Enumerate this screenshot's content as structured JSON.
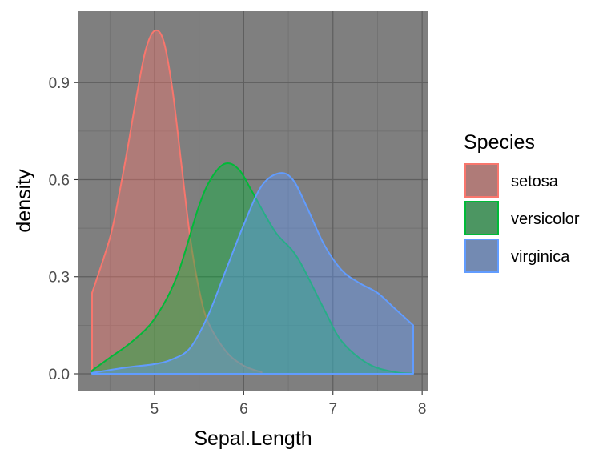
{
  "chart_data": {
    "type": "area",
    "title": "",
    "xlabel": "Sepal.Length",
    "ylabel": "density",
    "xlim": [
      4.3,
      7.9
    ],
    "ylim": [
      0.0,
      1.0663
    ],
    "x_ticks": [
      5,
      6,
      7,
      8
    ],
    "x_tick_labels": [
      "5",
      "6",
      "7",
      "8"
    ],
    "y_ticks": [
      0.0,
      0.3,
      0.6,
      0.9
    ],
    "y_tick_labels": [
      "0.0",
      "0.3",
      "0.6",
      "0.9"
    ],
    "grid": true,
    "legend": {
      "title": "Species",
      "position": "right"
    },
    "series": [
      {
        "name": "setosa",
        "color": "#F8766D",
        "x": [
          4.3,
          4.5,
          4.6,
          4.7,
          4.8,
          4.9,
          5.0,
          5.1,
          5.2,
          5.3,
          5.4,
          5.5,
          5.6,
          5.8,
          6.0,
          6.2
        ],
        "y": [
          0.25,
          0.42,
          0.55,
          0.7,
          0.86,
          1.0,
          1.06,
          1.03,
          0.88,
          0.65,
          0.42,
          0.26,
          0.16,
          0.07,
          0.025,
          0.005
        ]
      },
      {
        "name": "versicolor",
        "color": "#00BA38",
        "x": [
          4.3,
          4.5,
          4.75,
          5.0,
          5.25,
          5.5,
          5.65,
          5.8,
          5.95,
          6.1,
          6.35,
          6.6,
          6.9,
          7.1,
          7.4,
          7.7,
          7.9
        ],
        "y": [
          0.01,
          0.05,
          0.1,
          0.17,
          0.3,
          0.52,
          0.61,
          0.65,
          0.63,
          0.56,
          0.44,
          0.36,
          0.2,
          0.1,
          0.03,
          0.005,
          0.001
        ]
      },
      {
        "name": "virginica",
        "color": "#619CFF",
        "x": [
          4.3,
          4.7,
          5.0,
          5.2,
          5.4,
          5.6,
          5.8,
          6.0,
          6.2,
          6.4,
          6.55,
          6.7,
          6.9,
          7.1,
          7.3,
          7.5,
          7.7,
          7.9,
          7.9
        ],
        "y": [
          0.003,
          0.02,
          0.03,
          0.045,
          0.08,
          0.18,
          0.32,
          0.46,
          0.58,
          0.62,
          0.6,
          0.52,
          0.4,
          0.32,
          0.28,
          0.25,
          0.2,
          0.15,
          0.0
        ]
      }
    ]
  }
}
